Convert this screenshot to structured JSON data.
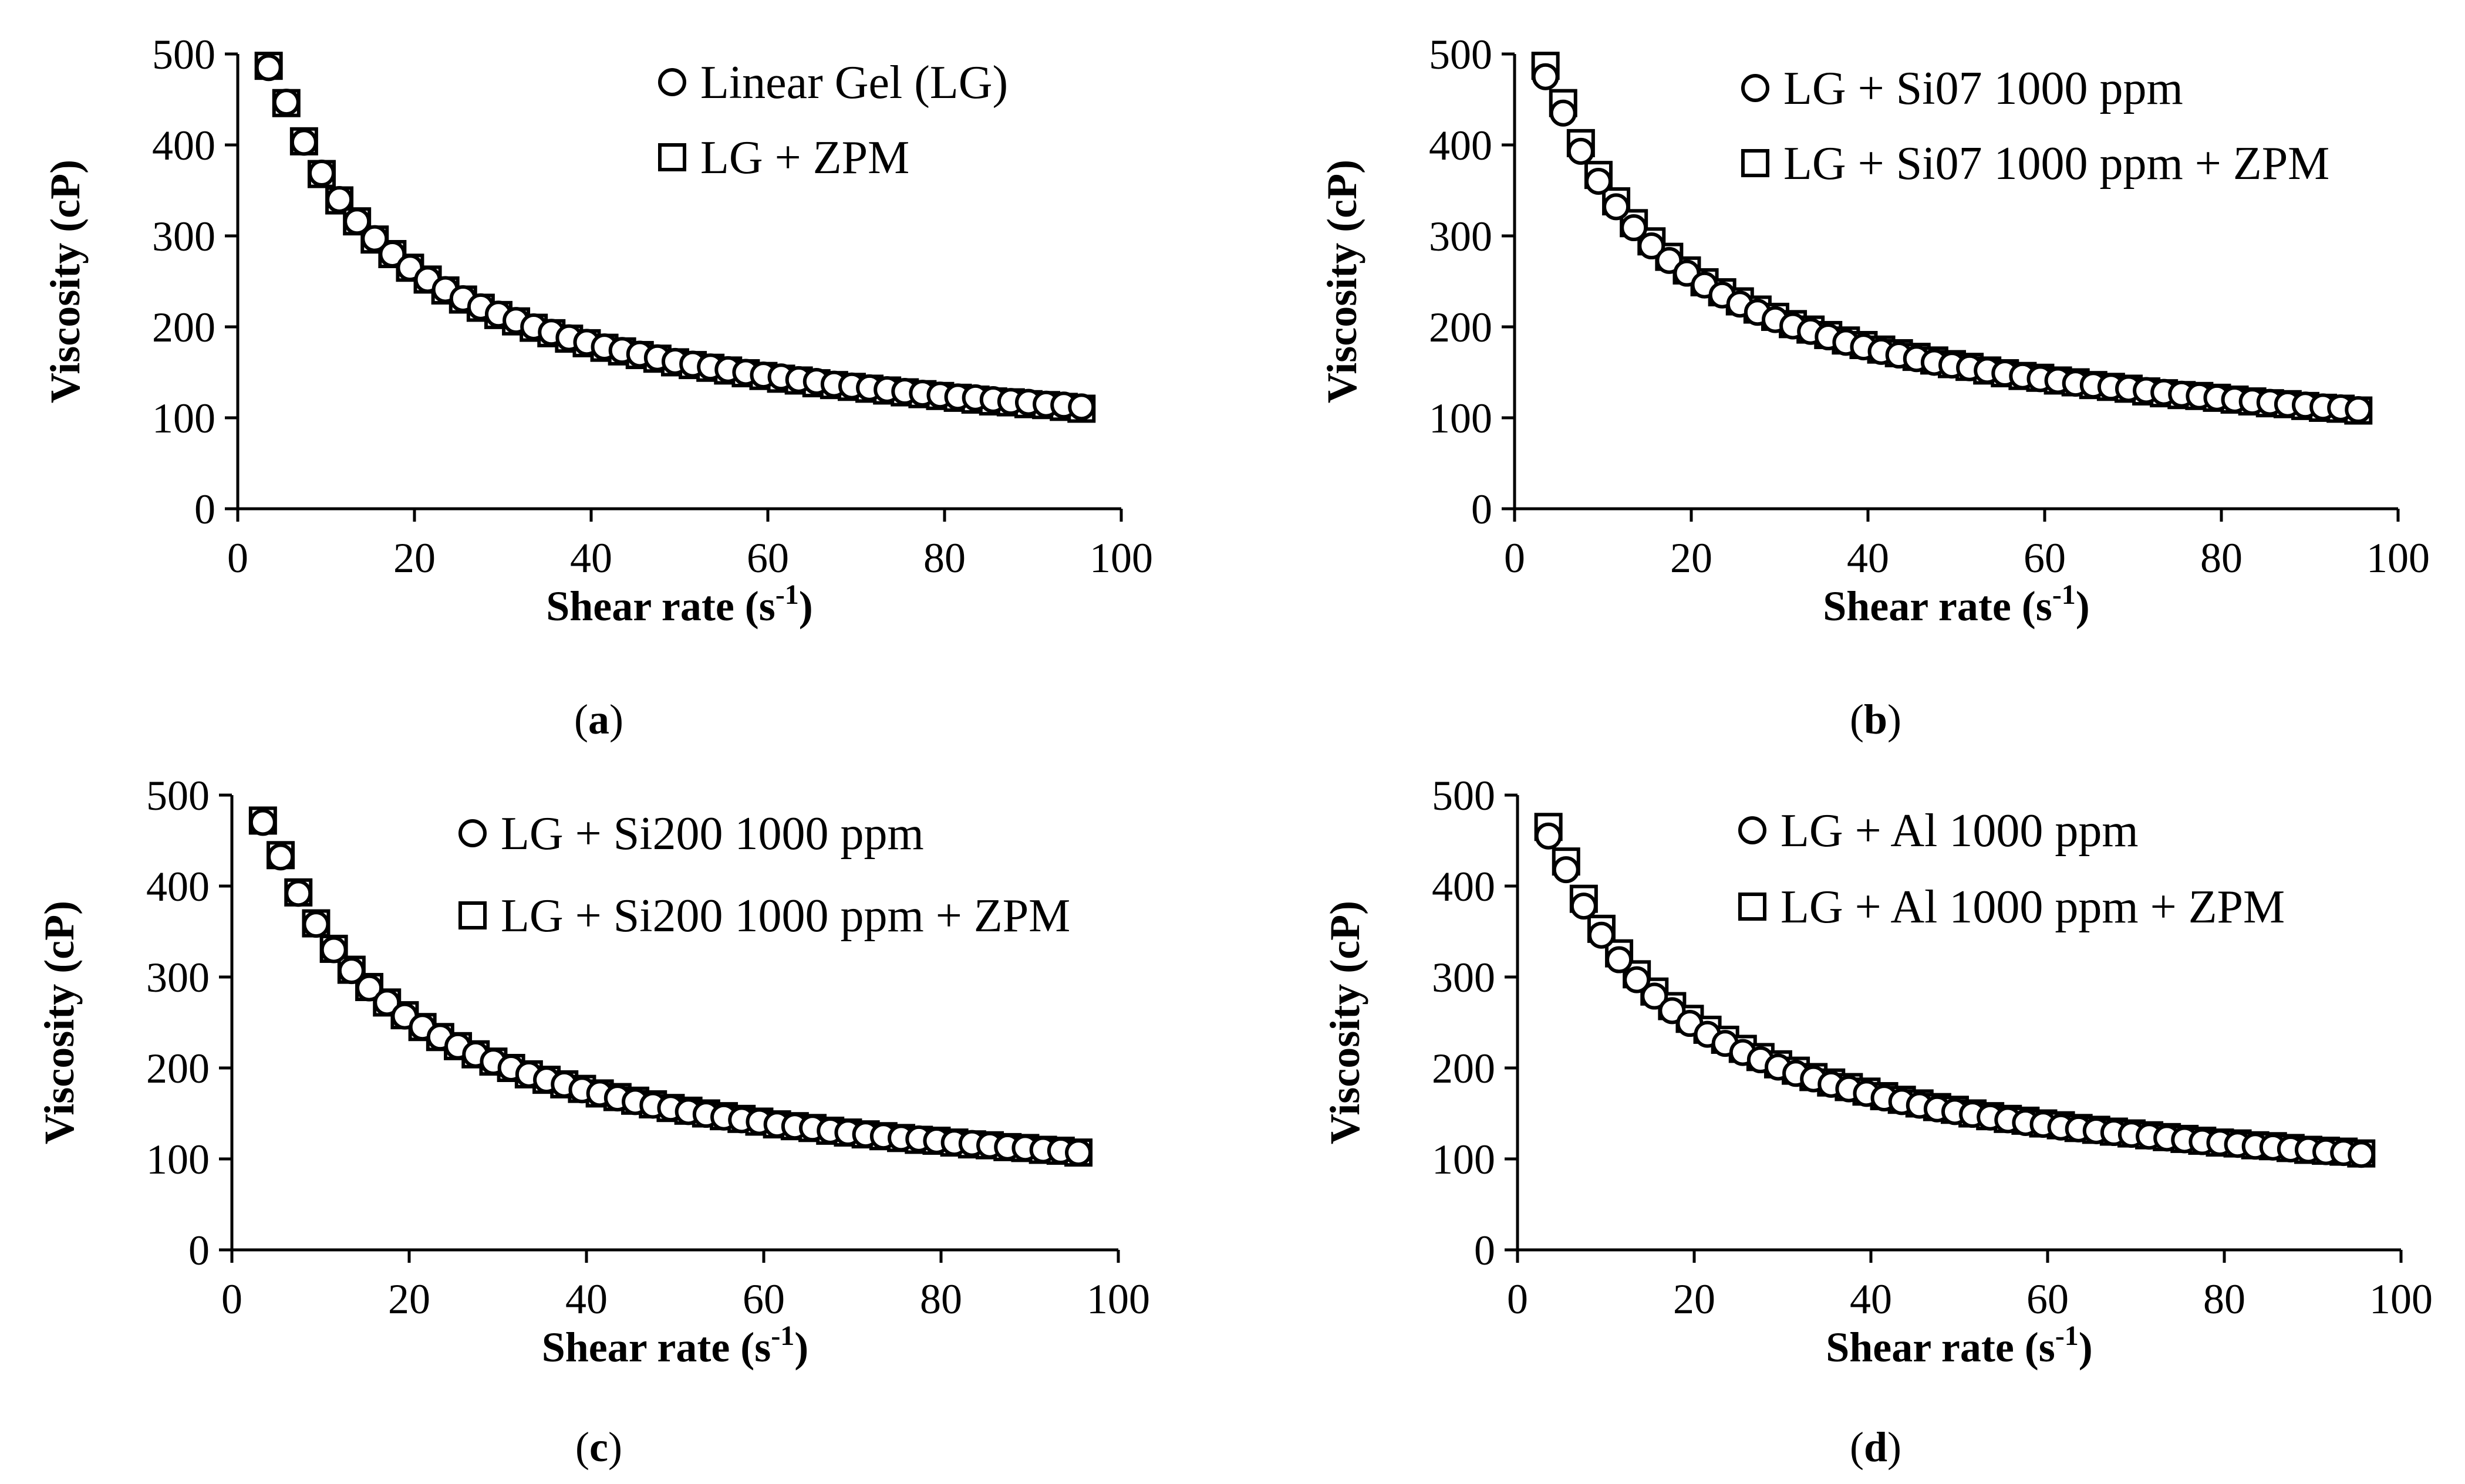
{
  "figure": {
    "panel_labels": [
      {
        "open": "(",
        "letter": "a",
        "close": ")"
      },
      {
        "open": "(",
        "letter": "b",
        "close": ")"
      },
      {
        "open": "(",
        "letter": "c",
        "close": ")"
      },
      {
        "open": "(",
        "letter": "d",
        "close": ")"
      }
    ]
  },
  "chart_data": [
    {
      "type": "scatter",
      "panel": "a",
      "title": "",
      "xlabel": "Shear rate (s-1)",
      "xlabel_main": "Shear rate (s",
      "xlabel_sup": "-1",
      "xlabel_close": ")",
      "ylabel": "Viscosity (cP)",
      "xlim": [
        0,
        100
      ],
      "ylim": [
        0,
        500
      ],
      "xticks": [
        0,
        20,
        40,
        60,
        80,
        100
      ],
      "yticks": [
        0,
        100,
        200,
        300,
        400,
        500
      ],
      "xtick_labels": [
        "0",
        "20",
        "40",
        "60",
        "80",
        "100"
      ],
      "ytick_labels": [
        "0",
        "100",
        "200",
        "300",
        "400",
        "500"
      ],
      "legend": "top-right",
      "colors": {
        "marker_stroke": "#000000",
        "marker_fill": "#ffffff"
      },
      "series": [
        {
          "name": "Linear Gel (LG)",
          "marker": "circle",
          "x": [
            3.5,
            5.5,
            7.5,
            9.5,
            11.5,
            13.5,
            15.5,
            17.5,
            19.5,
            21.5,
            23.5,
            25.5,
            27.5,
            29.5,
            31.5,
            33.5,
            35.5,
            37.5,
            39.5,
            41.5,
            43.5,
            45.5,
            47.5,
            49.5,
            51.5,
            53.5,
            55.5,
            57.5,
            59.5,
            61.5,
            63.5,
            65.5,
            67.5,
            69.5,
            71.5,
            73.5,
            75.5,
            77.5,
            79.5,
            81.5,
            83.5,
            85.5,
            87.5,
            89.5,
            91.5,
            93.5,
            95.5
          ],
          "y": [
            485,
            447,
            403,
            369,
            340,
            316,
            297,
            280,
            265,
            252,
            241,
            231,
            222,
            214,
            207,
            200,
            194,
            188,
            183,
            178,
            174,
            170,
            166,
            162,
            159,
            156,
            153,
            150,
            147,
            145,
            142,
            140,
            137,
            135,
            133,
            131,
            129,
            127,
            125,
            123,
            122,
            120,
            118,
            117,
            115,
            114,
            112
          ]
        },
        {
          "name": "LG + ZPM",
          "marker": "square",
          "x": [
            3.5,
            5.5,
            7.5,
            9.5,
            11.5,
            13.5,
            15.5,
            17.5,
            19.5,
            21.5,
            23.5,
            25.5,
            27.5,
            29.5,
            31.5,
            33.5,
            35.5,
            37.5,
            39.5,
            41.5,
            43.5,
            45.5,
            47.5,
            49.5,
            51.5,
            53.5,
            55.5,
            57.5,
            59.5,
            61.5,
            63.5,
            65.5,
            67.5,
            69.5,
            71.5,
            73.5,
            75.5,
            77.5,
            79.5,
            81.5,
            83.5,
            85.5,
            87.5,
            89.5,
            91.5,
            93.5,
            95.5
          ],
          "y": [
            487,
            446,
            404,
            368,
            339,
            316,
            296,
            280,
            265,
            252,
            240,
            230,
            221,
            213,
            206,
            199,
            193,
            187,
            182,
            177,
            173,
            169,
            165,
            161,
            158,
            155,
            152,
            149,
            146,
            143,
            141,
            138,
            136,
            134,
            132,
            130,
            128,
            126,
            124,
            122,
            120,
            118,
            117,
            115,
            114,
            112,
            110
          ]
        }
      ]
    },
    {
      "type": "scatter",
      "panel": "b",
      "title": "",
      "xlabel": "Shear rate (s-1)",
      "xlabel_main": "Shear rate (s",
      "xlabel_sup": "-1",
      "xlabel_close": ")",
      "ylabel": "Viscosity (cP)",
      "xlim": [
        0,
        100
      ],
      "ylim": [
        0,
        500
      ],
      "xticks": [
        0,
        20,
        40,
        60,
        80,
        100
      ],
      "yticks": [
        0,
        100,
        200,
        300,
        400,
        500
      ],
      "xtick_labels": [
        "0",
        "20",
        "40",
        "60",
        "80",
        "100"
      ],
      "ytick_labels": [
        "0",
        "100",
        "200",
        "300",
        "400",
        "500"
      ],
      "legend": "top-right",
      "colors": {
        "marker_stroke": "#000000",
        "marker_fill": "#ffffff"
      },
      "series": [
        {
          "name": "LG + Si07 1000 ppm",
          "marker": "circle",
          "x": [
            3.5,
            5.5,
            7.5,
            9.5,
            11.5,
            13.5,
            15.5,
            17.5,
            19.5,
            21.5,
            23.5,
            25.5,
            27.5,
            29.5,
            31.5,
            33.5,
            35.5,
            37.5,
            39.5,
            41.5,
            43.5,
            45.5,
            47.5,
            49.5,
            51.5,
            53.5,
            55.5,
            57.5,
            59.5,
            61.5,
            63.5,
            65.5,
            67.5,
            69.5,
            71.5,
            73.5,
            75.5,
            77.5,
            79.5,
            81.5,
            83.5,
            85.5,
            87.5,
            89.5,
            91.5,
            93.5,
            95.5
          ],
          "y": [
            475,
            435,
            393,
            360,
            332,
            309,
            289,
            273,
            259,
            246,
            235,
            225,
            216,
            208,
            201,
            195,
            189,
            183,
            178,
            173,
            169,
            165,
            161,
            158,
            155,
            152,
            149,
            146,
            143,
            141,
            138,
            136,
            134,
            132,
            130,
            128,
            126,
            124,
            122,
            120,
            118,
            117,
            115,
            114,
            112,
            111,
            109
          ]
        },
        {
          "name": "LG + Si07 1000 ppm + ZPM",
          "marker": "square",
          "x": [
            3.5,
            5.5,
            7.5,
            9.5,
            11.5,
            13.5,
            15.5,
            17.5,
            19.5,
            21.5,
            23.5,
            25.5,
            27.5,
            29.5,
            31.5,
            33.5,
            35.5,
            37.5,
            39.5,
            41.5,
            43.5,
            45.5,
            47.5,
            49.5,
            51.5,
            53.5,
            55.5,
            57.5,
            59.5,
            61.5,
            63.5,
            65.5,
            67.5,
            69.5,
            71.5,
            73.5,
            75.5,
            77.5,
            79.5,
            81.5,
            83.5,
            85.5,
            87.5,
            89.5,
            91.5,
            93.5,
            95.5
          ],
          "y": [
            487,
            446,
            402,
            367,
            338,
            314,
            294,
            277,
            262,
            249,
            238,
            228,
            219,
            211,
            203,
            197,
            191,
            185,
            180,
            175,
            171,
            167,
            163,
            159,
            156,
            152,
            149,
            146,
            144,
            141,
            139,
            136,
            134,
            132,
            129,
            127,
            125,
            124,
            122,
            120,
            118,
            116,
            115,
            113,
            111,
            110,
            108
          ]
        }
      ]
    },
    {
      "type": "scatter",
      "panel": "c",
      "title": "",
      "xlabel": "Shear rate (s-1)",
      "xlabel_main": "Shear rate (s",
      "xlabel_sup": "-1",
      "xlabel_close": ")",
      "ylabel": "Viscosity (cP)",
      "xlim": [
        0,
        100
      ],
      "ylim": [
        0,
        500
      ],
      "xticks": [
        0,
        20,
        40,
        60,
        80,
        100
      ],
      "yticks": [
        0,
        100,
        200,
        300,
        400,
        500
      ],
      "xtick_labels": [
        "0",
        "20",
        "40",
        "60",
        "80",
        "100"
      ],
      "ytick_labels": [
        "0",
        "100",
        "200",
        "300",
        "400",
        "500"
      ],
      "legend": "top-right",
      "colors": {
        "marker_stroke": "#000000",
        "marker_fill": "#ffffff"
      },
      "series": [
        {
          "name": "LG + Si200 1000 ppm",
          "marker": "circle",
          "x": [
            3.5,
            5.5,
            7.5,
            9.5,
            11.5,
            13.5,
            15.5,
            17.5,
            19.5,
            21.5,
            23.5,
            25.5,
            27.5,
            29.5,
            31.5,
            33.5,
            35.5,
            37.5,
            39.5,
            41.5,
            43.5,
            45.5,
            47.5,
            49.5,
            51.5,
            53.5,
            55.5,
            57.5,
            59.5,
            61.5,
            63.5,
            65.5,
            67.5,
            69.5,
            71.5,
            73.5,
            75.5,
            77.5,
            79.5,
            81.5,
            83.5,
            85.5,
            87.5,
            89.5,
            91.5,
            93.5,
            95.5
          ],
          "y": [
            470,
            432,
            392,
            358,
            330,
            307,
            288,
            272,
            257,
            245,
            234,
            224,
            215,
            207,
            200,
            193,
            187,
            182,
            176,
            172,
            167,
            163,
            159,
            156,
            152,
            149,
            146,
            143,
            141,
            138,
            136,
            134,
            131,
            129,
            127,
            125,
            123,
            122,
            120,
            118,
            117,
            115,
            113,
            112,
            110,
            109,
            107
          ]
        },
        {
          "name": "LG + Si200 1000 ppm + ZPM",
          "marker": "square",
          "x": [
            3.5,
            5.5,
            7.5,
            9.5,
            11.5,
            13.5,
            15.5,
            17.5,
            19.5,
            21.5,
            23.5,
            25.5,
            27.5,
            29.5,
            31.5,
            33.5,
            35.5,
            37.5,
            39.5,
            41.5,
            43.5,
            45.5,
            47.5,
            49.5,
            51.5,
            53.5,
            55.5,
            57.5,
            59.5,
            61.5,
            63.5,
            65.5,
            67.5,
            69.5,
            71.5,
            73.5,
            75.5,
            77.5,
            79.5,
            81.5,
            83.5,
            85.5,
            87.5,
            89.5,
            91.5,
            93.5,
            95.5
          ],
          "y": [
            472,
            434,
            393,
            359,
            331,
            308,
            289,
            272,
            258,
            245,
            234,
            224,
            215,
            207,
            200,
            193,
            187,
            182,
            177,
            172,
            168,
            164,
            160,
            156,
            153,
            150,
            147,
            144,
            141,
            138,
            136,
            134,
            131,
            129,
            127,
            125,
            123,
            121,
            120,
            118,
            116,
            115,
            113,
            112,
            110,
            109,
            107
          ]
        }
      ]
    },
    {
      "type": "scatter",
      "panel": "d",
      "title": "",
      "xlabel": "Shear rate (s-1)",
      "xlabel_main": "Shear rate (s",
      "xlabel_sup": "-1",
      "xlabel_close": ")",
      "ylabel": "Viscosity (cP)",
      "xlim": [
        0,
        100
      ],
      "ylim": [
        0,
        500
      ],
      "xticks": [
        0,
        20,
        40,
        60,
        80,
        100
      ],
      "yticks": [
        0,
        100,
        200,
        300,
        400,
        500
      ],
      "xtick_labels": [
        "0",
        "20",
        "40",
        "60",
        "80",
        "100"
      ],
      "ytick_labels": [
        "0",
        "100",
        "200",
        "300",
        "400",
        "500"
      ],
      "legend": "top-right",
      "colors": {
        "marker_stroke": "#000000",
        "marker_fill": "#ffffff"
      },
      "series": [
        {
          "name": "LG + Al 1000 ppm",
          "marker": "circle",
          "x": [
            3.5,
            5.5,
            7.5,
            9.5,
            11.5,
            13.5,
            15.5,
            17.5,
            19.5,
            21.5,
            23.5,
            25.5,
            27.5,
            29.5,
            31.5,
            33.5,
            35.5,
            37.5,
            39.5,
            41.5,
            43.5,
            45.5,
            47.5,
            49.5,
            51.5,
            53.5,
            55.5,
            57.5,
            59.5,
            61.5,
            63.5,
            65.5,
            67.5,
            69.5,
            71.5,
            73.5,
            75.5,
            77.5,
            79.5,
            81.5,
            83.5,
            85.5,
            87.5,
            89.5,
            91.5,
            93.5,
            95.5
          ],
          "y": [
            455,
            418,
            378,
            346,
            319,
            297,
            279,
            263,
            249,
            237,
            227,
            217,
            209,
            201,
            194,
            188,
            182,
            177,
            172,
            167,
            163,
            159,
            155,
            152,
            149,
            146,
            143,
            140,
            138,
            135,
            133,
            131,
            129,
            127,
            125,
            123,
            121,
            119,
            118,
            116,
            114,
            113,
            111,
            110,
            108,
            107,
            105
          ]
        },
        {
          "name": "LG + Al 1000 ppm + ZPM",
          "marker": "square",
          "x": [
            3.5,
            5.5,
            7.5,
            9.5,
            11.5,
            13.5,
            15.5,
            17.5,
            19.5,
            21.5,
            23.5,
            25.5,
            27.5,
            29.5,
            31.5,
            33.5,
            35.5,
            37.5,
            39.5,
            41.5,
            43.5,
            45.5,
            47.5,
            49.5,
            51.5,
            53.5,
            55.5,
            57.5,
            59.5,
            61.5,
            63.5,
            65.5,
            67.5,
            69.5,
            71.5,
            73.5,
            75.5,
            77.5,
            79.5,
            81.5,
            83.5,
            85.5,
            87.5,
            89.5,
            91.5,
            93.5,
            95.5
          ],
          "y": [
            465,
            427,
            386,
            353,
            326,
            303,
            284,
            268,
            254,
            242,
            231,
            221,
            212,
            204,
            197,
            190,
            184,
            179,
            174,
            169,
            165,
            161,
            157,
            154,
            150,
            147,
            144,
            142,
            139,
            137,
            134,
            132,
            130,
            128,
            126,
            124,
            122,
            120,
            118,
            117,
            115,
            114,
            112,
            110,
            109,
            108,
            106
          ]
        }
      ]
    }
  ]
}
